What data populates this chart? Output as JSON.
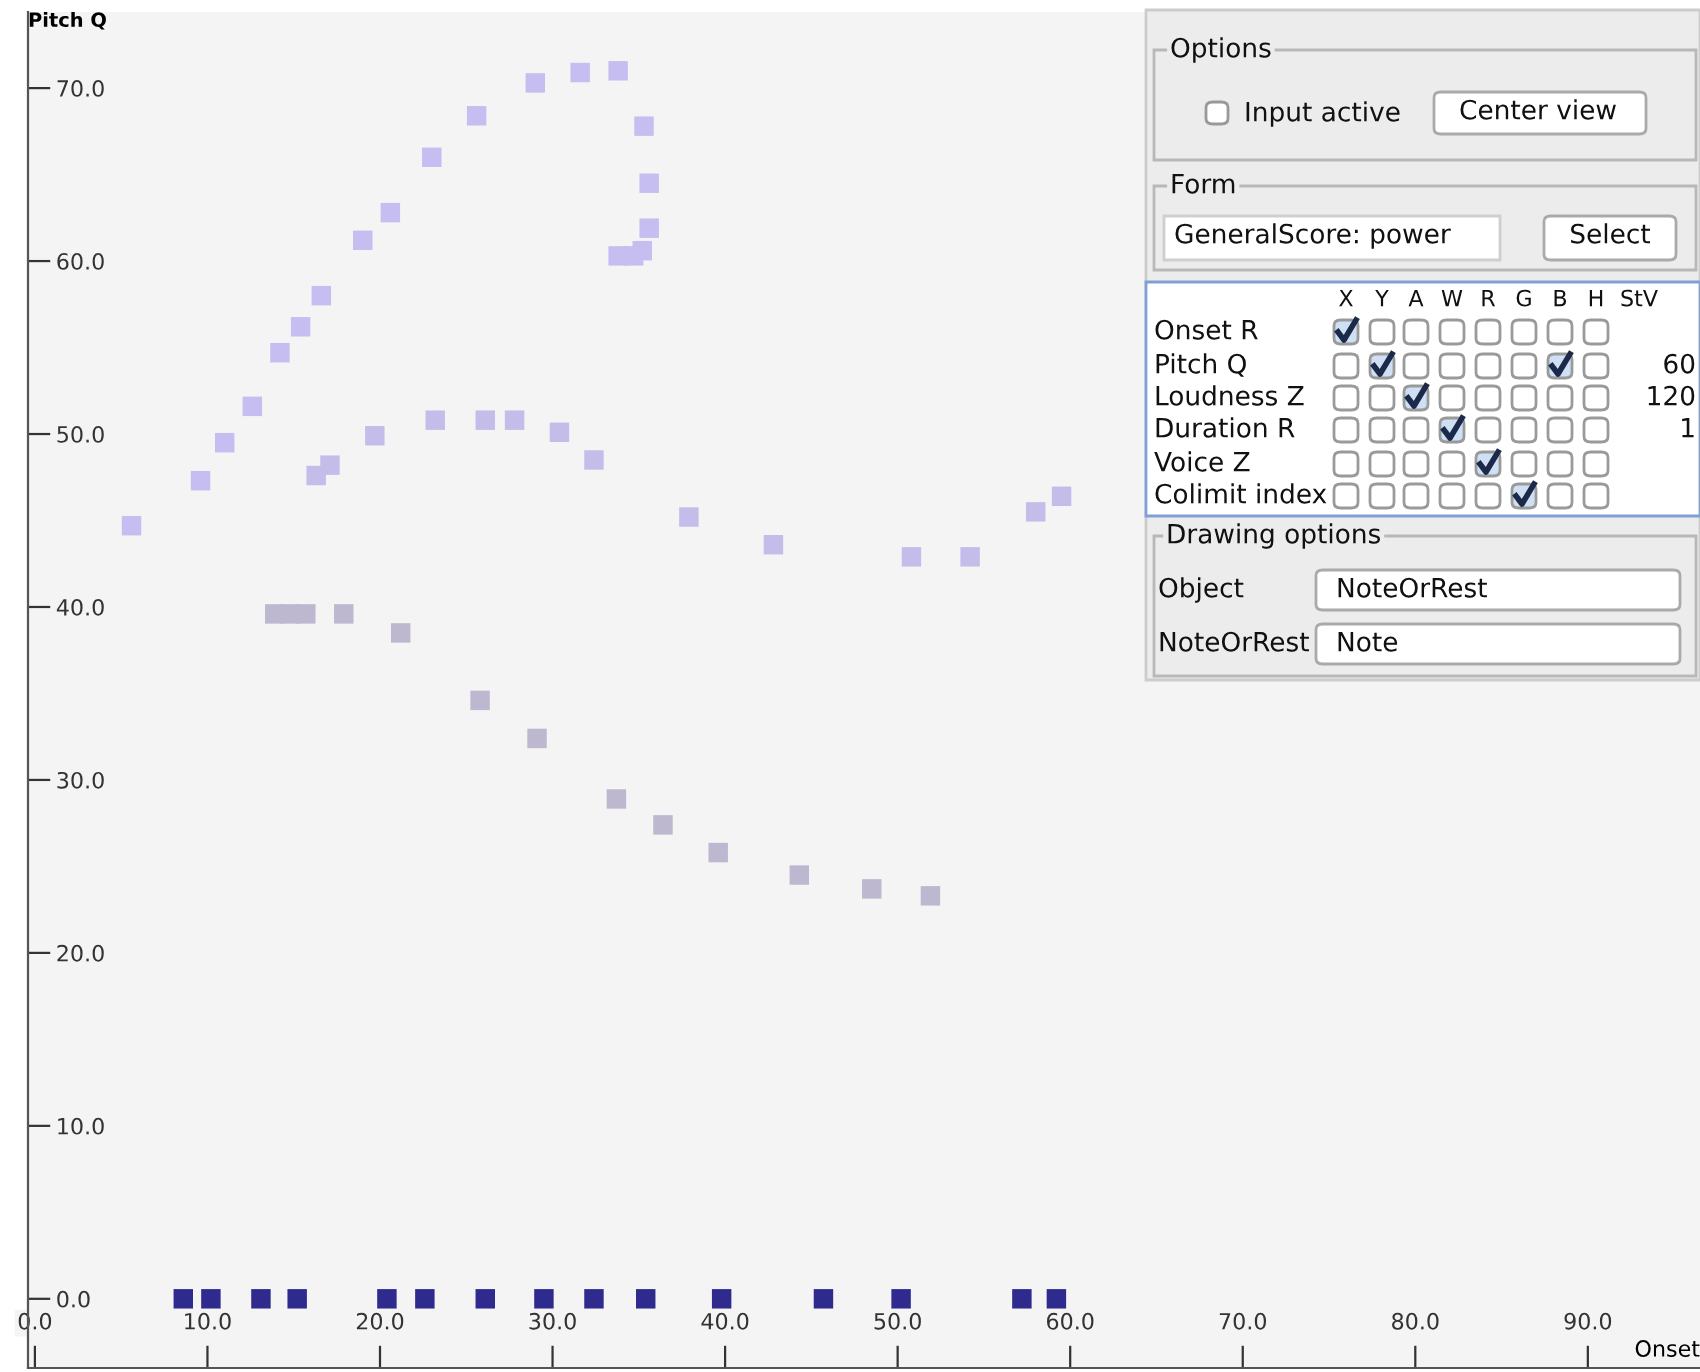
{
  "chart_data": [
    {
      "type": "scatter",
      "xlabel": "Onset",
      "ylabel": "Pitch Q",
      "marker": "square",
      "grid": false,
      "xlim": [
        -0.4,
        96.5
      ],
      "ylim": [
        -4.0,
        74.4
      ],
      "xticks": [
        {
          "value": 0,
          "label": "0.0"
        },
        {
          "value": 10,
          "label": "10.0"
        },
        {
          "value": 20,
          "label": "20.0"
        },
        {
          "value": 30,
          "label": "30.0"
        },
        {
          "value": 40,
          "label": "40.0"
        },
        {
          "value": 50,
          "label": "50.0"
        },
        {
          "value": 60,
          "label": "60.0"
        },
        {
          "value": 70,
          "label": "70.0"
        },
        {
          "value": 80,
          "label": "80.0"
        },
        {
          "value": 90,
          "label": "90.0"
        }
      ],
      "yticks": [
        {
          "value": 0,
          "label": "0.0"
        },
        {
          "value": 10,
          "label": "10.0"
        },
        {
          "value": 20,
          "label": "20.0"
        },
        {
          "value": 30,
          "label": "30.0"
        },
        {
          "value": 40,
          "label": "40.0"
        },
        {
          "value": 50,
          "label": "50.0"
        },
        {
          "value": 60,
          "label": "60.0"
        },
        {
          "value": 70,
          "label": "70.0"
        }
      ],
      "series": [
        {
          "color": "#c6bdf0",
          "x": [
            5.6,
            9.6,
            11.0,
            12.6,
            14.2,
            15.4,
            16.6,
            19.0,
            20.6,
            23.0,
            25.6,
            29.0,
            31.6,
            33.8,
            35.3,
            35.6,
            35.6,
            35.2,
            33.8,
            34.7
          ],
          "values": [
            44.7,
            47.3,
            49.5,
            51.6,
            54.7,
            56.2,
            58.0,
            61.2,
            62.8,
            66.0,
            68.4,
            70.3,
            70.9,
            71.0,
            67.8,
            64.5,
            61.9,
            60.6,
            60.3,
            60.3
          ]
        },
        {
          "color": "#c4bdea",
          "x": [
            16.3,
            17.1,
            19.7,
            23.2,
            26.1,
            27.8,
            30.4,
            32.4,
            37.9,
            42.8,
            50.8,
            54.2,
            58.0,
            59.5
          ],
          "values": [
            47.6,
            48.2,
            49.9,
            50.8,
            50.8,
            50.8,
            50.1,
            48.5,
            45.2,
            43.6,
            42.9,
            42.9,
            45.5,
            46.4
          ]
        },
        {
          "color": "#bdb8cf",
          "x": [
            13.9,
            14.8,
            15.7,
            17.9,
            21.2,
            25.8,
            29.1,
            33.7,
            36.4,
            39.6,
            44.3,
            48.5,
            51.9
          ],
          "values": [
            39.6,
            39.6,
            39.6,
            39.6,
            38.5,
            34.6,
            32.4,
            28.9,
            27.4,
            25.8,
            24.5,
            23.7,
            23.3
          ]
        },
        {
          "color": "#2e2a8e",
          "x": [
            8.6,
            10.2,
            13.1,
            15.2,
            20.4,
            22.6,
            26.1,
            29.5,
            32.4,
            35.4,
            39.8,
            45.7,
            50.2,
            57.2,
            59.2
          ],
          "values": [
            0,
            0,
            0,
            0,
            0,
            0,
            0,
            0,
            0,
            0,
            0,
            0,
            0,
            0,
            0
          ]
        }
      ]
    },
    {
      "type": "other",
      "annotations": [
        "Options",
        "Input active",
        "Center view",
        "Form",
        "GeneralScore: power",
        "Select",
        "X",
        "Y",
        "A",
        "W",
        "R",
        "G",
        "B",
        "H",
        "StV",
        "Onset R",
        "Pitch Q",
        "Loudness Z",
        "Duration R",
        "Voice Z",
        "Colimit index",
        "60",
        "120",
        "1",
        "Drawing options",
        "Object",
        "NoteOrRest",
        "NoteOrRest",
        "Note"
      ]
    }
  ]
}
